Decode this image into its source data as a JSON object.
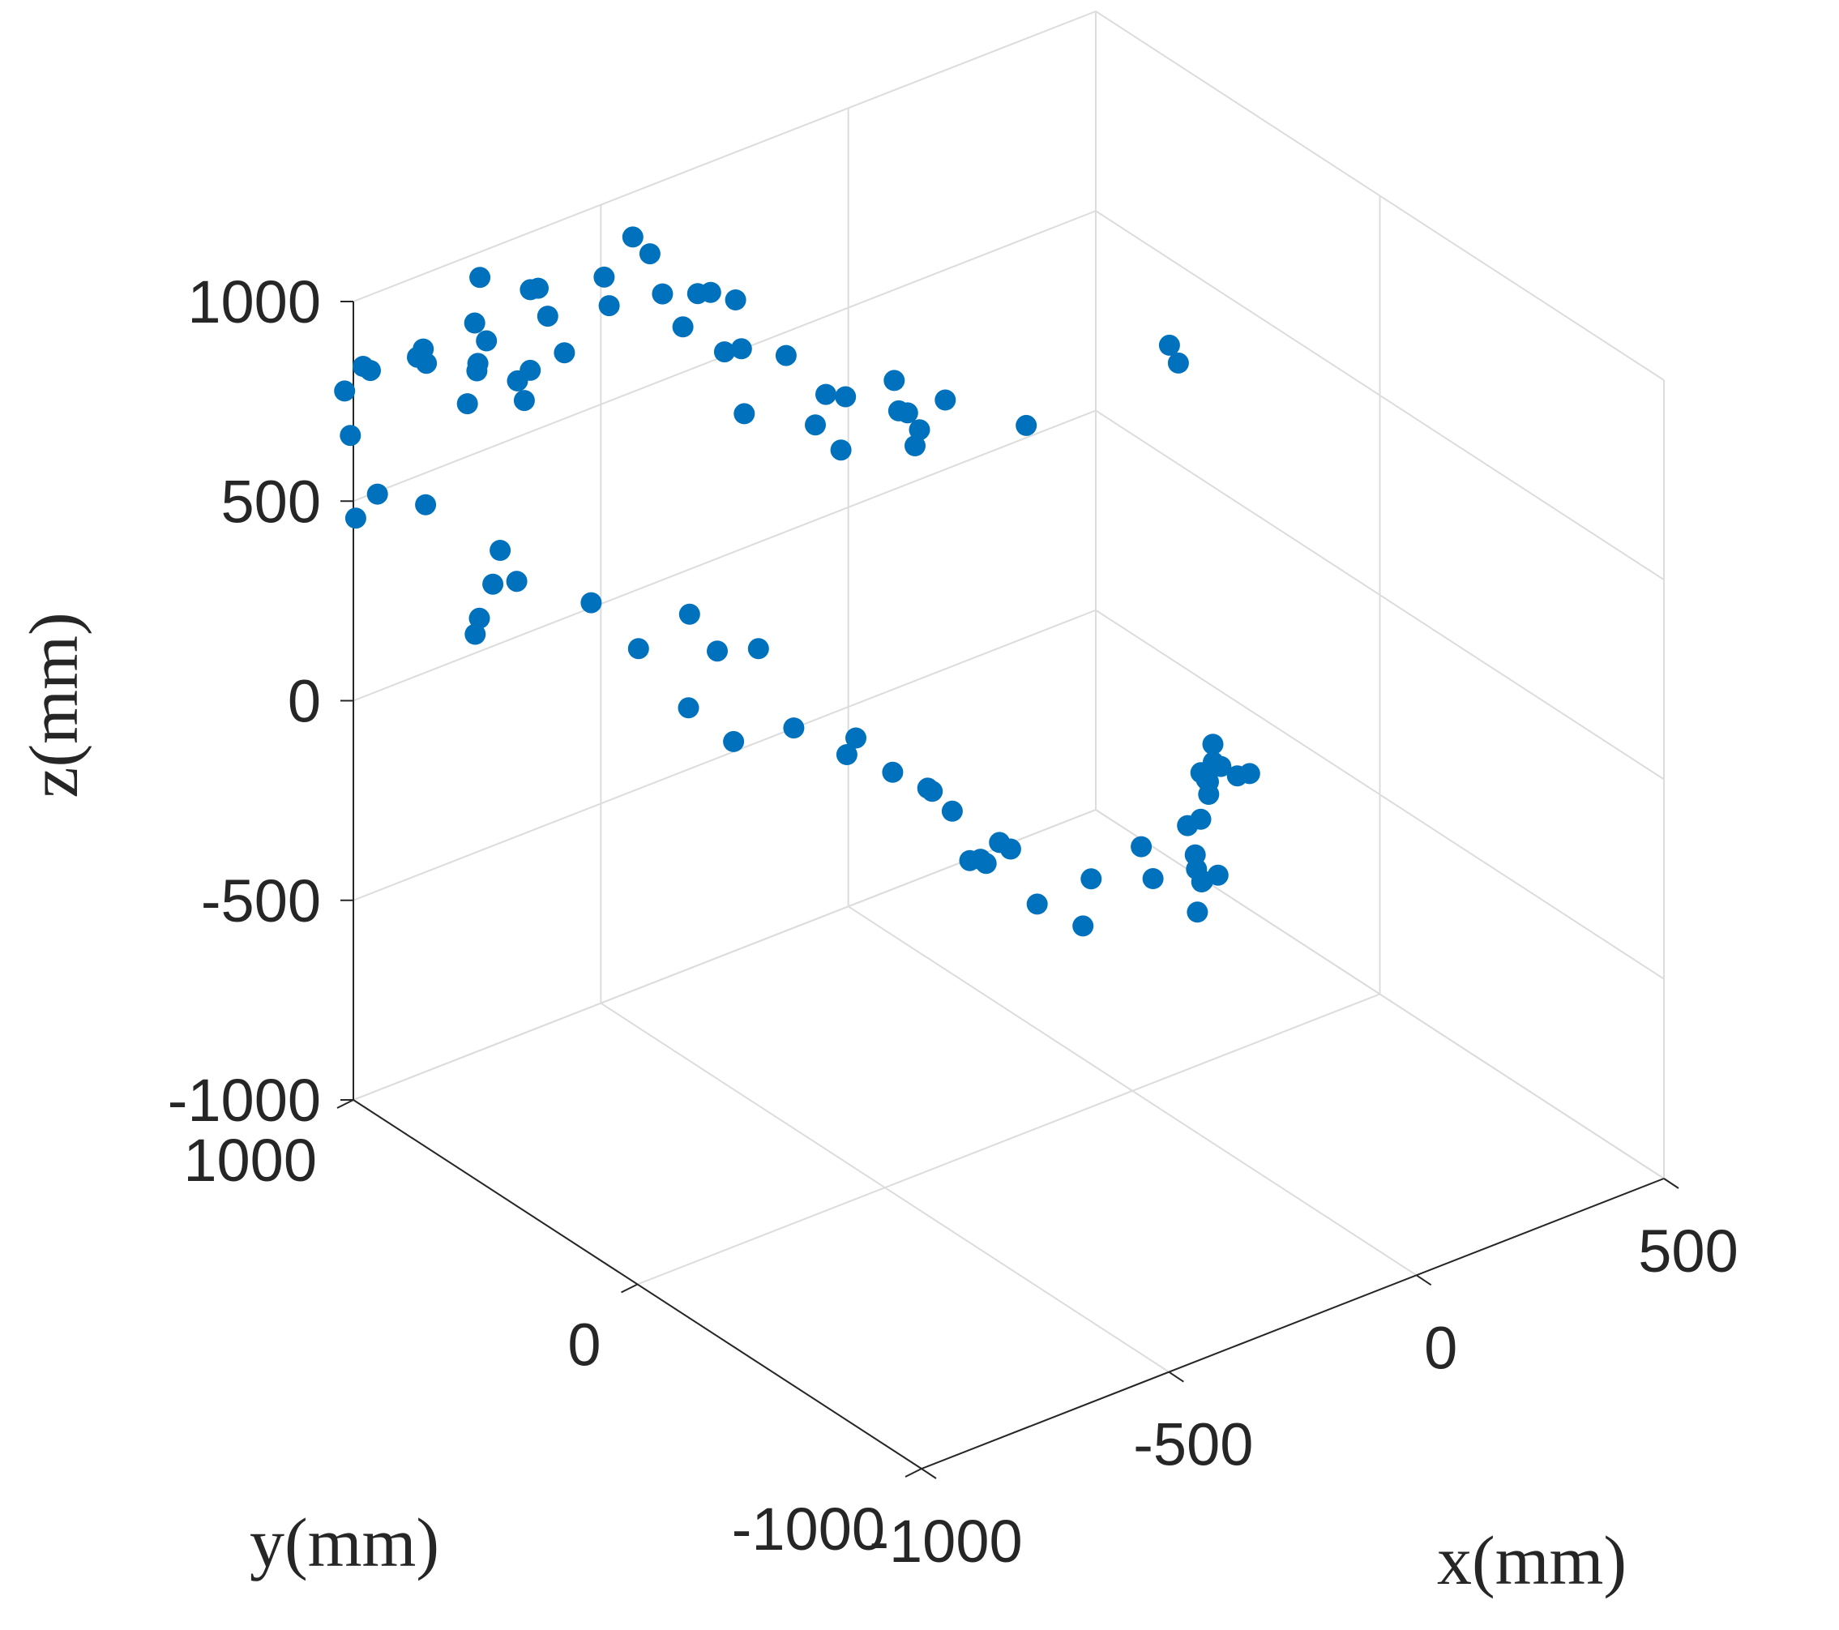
{
  "chart_data": {
    "type": "scatter",
    "title": "",
    "xlabel": "x(mm)",
    "ylabel": "y(mm)",
    "zlabel": "z(mm)",
    "xlim": [
      -1000,
      500
    ],
    "ylim": [
      -1000,
      1000
    ],
    "zlim": [
      -1000,
      1000
    ],
    "x_ticks": [
      "-1000",
      "-500",
      "0",
      "500"
    ],
    "y_ticks": [
      "-1000",
      "0",
      "1000"
    ],
    "z_ticks": [
      "-1000",
      "-500",
      "0",
      "500",
      "1000"
    ],
    "grid": true,
    "marker_color": "#0072BD",
    "series": [
      {
        "name": "",
        "points": [
          [
            -424,
            -80,
            973
          ],
          [
            -17,
            -160,
            950
          ],
          [
            -7,
            -174,
            907
          ],
          [
            -421,
            105,
            935
          ],
          [
            -528,
            90,
            953
          ],
          [
            -433,
            37,
            891
          ],
          [
            -563,
            238,
            1005
          ],
          [
            -434,
            9,
            822
          ],
          [
            -418,
            21,
            849
          ],
          [
            -234,
            -34,
            796
          ],
          [
            -406,
            115,
            847
          ],
          [
            -543,
            170,
            853
          ],
          [
            -493,
            220,
            882
          ],
          [
            -482,
            186,
            753
          ],
          [
            -628,
            272,
            875
          ],
          [
            -598,
            394,
            959
          ],
          [
            -562,
            397,
            948
          ],
          [
            -563,
            416,
            1062
          ],
          [
            -605,
            528,
            963
          ],
          [
            -548,
            530,
            1021
          ],
          [
            -593,
            497,
            1055
          ],
          [
            -617,
            579,
            1028
          ],
          [
            -711,
            603,
            1033
          ],
          [
            -620,
            618,
            1112
          ],
          [
            -599,
            715,
            1099
          ],
          [
            -700,
            640,
            1082
          ],
          [
            -795,
            673,
            1015
          ],
          [
            -773,
            745,
            1041
          ],
          [
            -791,
            741,
            1048
          ],
          [
            -838,
            837,
            1057
          ],
          [
            -884,
            775,
            994
          ],
          [
            -755,
            684,
            899
          ],
          [
            -862,
            772,
            940
          ],
          [
            -796,
            733,
            852
          ],
          [
            -861,
            804,
            868
          ],
          [
            -813,
            748,
            827
          ],
          [
            -922,
            890,
            894
          ],
          [
            -840,
            844,
            821
          ],
          [
            -903,
            912,
            839
          ],
          [
            -758,
            820,
            718
          ],
          [
            -843,
            872,
            727
          ],
          [
            -877,
            989,
            806
          ],
          [
            -945,
            1036,
            784
          ],
          [
            -943,
            1065,
            780
          ],
          [
            -946,
            1125,
            692
          ],
          [
            -932,
            1129,
            572
          ],
          [
            -918,
            1058,
            451
          ],
          [
            -881,
            953,
            455
          ],
          [
            -951,
            1077,
            398
          ],
          [
            -809,
            816,
            369
          ],
          [
            -790,
            875,
            248
          ],
          [
            -783,
            803,
            285
          ],
          [
            -843,
            830,
            209
          ],
          [
            -832,
            864,
            148
          ],
          [
            -733,
            628,
            288
          ],
          [
            -696,
            526,
            202
          ],
          [
            -664,
            402,
            330
          ],
          [
            -616,
            388,
            221
          ],
          [
            -585,
            297,
            254
          ],
          [
            -665,
            404,
            95
          ],
          [
            -648,
            275,
            62
          ],
          [
            -582,
            178,
            109
          ],
          [
            -507,
            90,
            88
          ],
          [
            -508,
            120,
            33
          ],
          [
            -455,
            51,
            -5
          ],
          [
            -430,
            -29,
            -20
          ],
          [
            -436,
            -55,
            -13
          ],
          [
            -426,
            -108,
            -43
          ],
          [
            -366,
            -170,
            -122
          ],
          [
            -350,
            -181,
            -141
          ],
          [
            -413,
            -147,
            -155
          ],
          [
            -386,
            -138,
            -169
          ],
          [
            -377,
            -142,
            -182
          ],
          [
            -345,
            -266,
            -242
          ],
          [
            -291,
            -333,
            -292
          ],
          [
            -228,
            -252,
            -242
          ],
          [
            -121,
            -242,
            -218
          ],
          [
            -138,
            -313,
            -257
          ],
          [
            -82,
            -387,
            -258
          ],
          [
            -112,
            -424,
            -302
          ],
          [
            -26,
            -286,
            -175
          ],
          [
            -55,
            -290,
            -175
          ],
          [
            -77,
            -360,
            -241
          ],
          [
            -71,
            -345,
            -215
          ],
          [
            -67,
            -418,
            -234
          ],
          [
            -14,
            -293,
            -115
          ],
          [
            -105,
            -431,
            -224
          ],
          [
            -16,
            -269,
            -71
          ],
          [
            -11,
            -287,
            -88
          ],
          [
            -39,
            -328,
            -49
          ],
          [
            -7,
            -297,
            -36
          ],
          [
            -6,
            -294,
            7
          ],
          [
            -29,
            -362,
            -6
          ],
          [
            -18,
            -401,
            -17
          ],
          [
            -2,
            -416,
            -12
          ]
        ]
      }
    ]
  }
}
